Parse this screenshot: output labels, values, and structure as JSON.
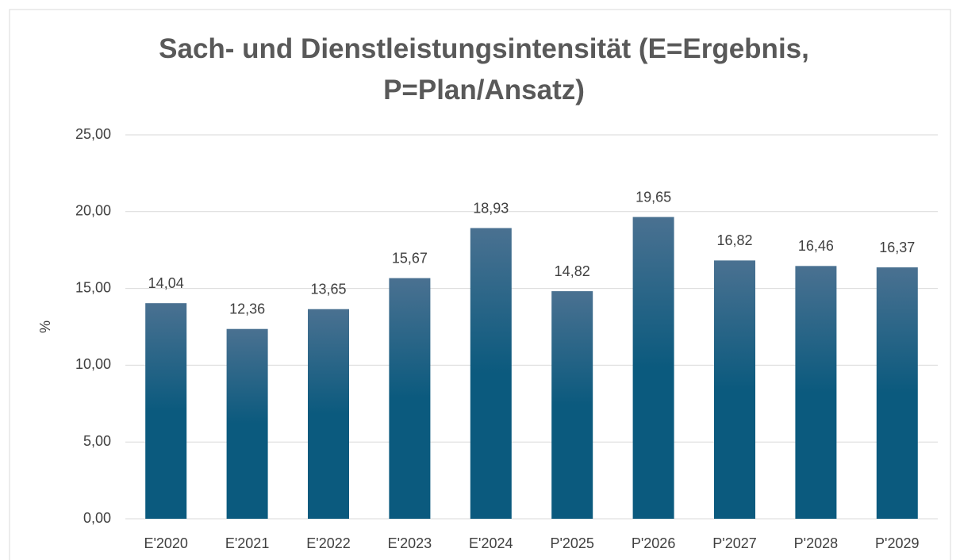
{
  "chart_data": {
    "type": "bar",
    "title": "Sach- und Dienstleistungsintensität (E=Ergebnis, P=Plan/Ansatz)",
    "y_label": "%",
    "categories": [
      "E'2020",
      "E'2021",
      "E'2022",
      "E'2023",
      "E'2024",
      "P'2025",
      "P'2026",
      "P'2027",
      "P'2028",
      "P'2029"
    ],
    "values": [
      14.04,
      12.36,
      13.65,
      15.67,
      18.93,
      14.82,
      19.65,
      16.82,
      16.46,
      16.37
    ],
    "value_labels": [
      "14,04",
      "12,36",
      "13,65",
      "15,67",
      "18,93",
      "14,82",
      "19,65",
      "16,82",
      "16,46",
      "16,37"
    ],
    "color": "#0b5a7e",
    "ylim": [
      0,
      25
    ],
    "yticks": [
      {
        "value": 0,
        "label": "0,00"
      },
      {
        "value": 5,
        "label": "5,00"
      },
      {
        "value": 10,
        "label": "10,00"
      },
      {
        "value": 15,
        "label": "15,00"
      },
      {
        "value": 20,
        "label": "20,00"
      },
      {
        "value": 25,
        "label": "25,00"
      }
    ],
    "grid": true
  }
}
